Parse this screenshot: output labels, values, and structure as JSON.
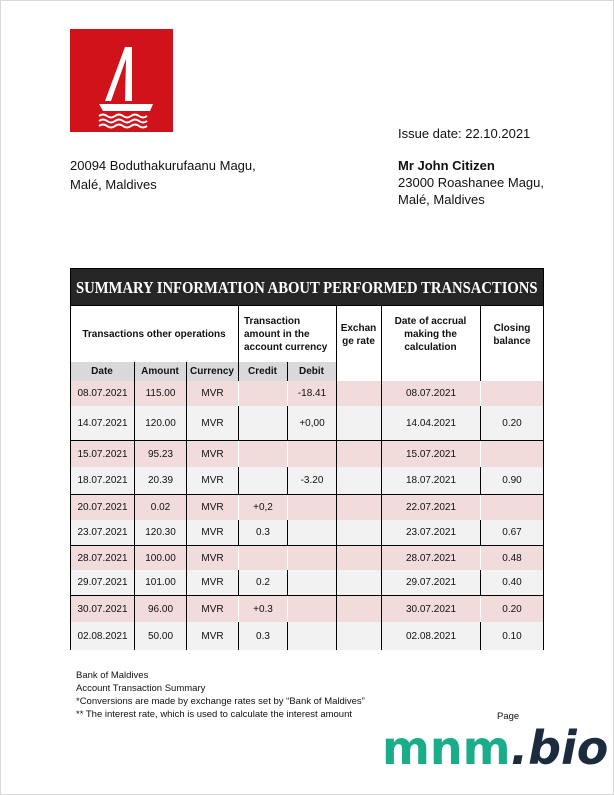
{
  "logo": {
    "icon": "sailboat-icon",
    "color": "#d0121b"
  },
  "issue_date": "Issue date: 22.10.2021",
  "sender": {
    "line1": "20094 Boduthakurufaanu Magu,",
    "line2": "Malé, Maldives"
  },
  "recipient": {
    "name": "Mr John Citizen",
    "line1": "23000 Roashanee Magu,",
    "line2": "Malé, Maldives"
  },
  "table": {
    "title": "SUMMARY INFORMATION ABOUT PERFORMED TRANSACTIONS",
    "group_headers": {
      "other": "Transactions other operations",
      "account": "Transaction amount in the account currency",
      "rate": "Exchan ge rate",
      "accrual": "Date of accrual making the calculation",
      "closing": "Closing balance"
    },
    "sub_headers": {
      "date": "Date",
      "amount": "Amount",
      "currency": "Currency",
      "credit": "Credit",
      "debit": "Debit"
    },
    "rows": [
      {
        "date": "08.07.2021",
        "amount": "115.00",
        "currency": "MVR",
        "credit": "",
        "debit": "-18.41",
        "rate": "",
        "accrual": "08.07.2021",
        "closing": ""
      },
      {
        "date": "14.07.2021",
        "amount": "120.00",
        "currency": "MVR",
        "credit": "",
        "debit": "+0,00",
        "rate": "",
        "accrual": "14.04.2021",
        "closing": "0.20"
      },
      {
        "date": "15.07.2021",
        "amount": "95.23",
        "currency": "MVR",
        "credit": "",
        "debit": "",
        "rate": "",
        "accrual": "15.07.2021",
        "closing": ""
      },
      {
        "date": "18.07.2021",
        "amount": "20.39",
        "currency": "MVR",
        "credit": "",
        "debit": "-3.20",
        "rate": "",
        "accrual": "18.07.2021",
        "closing": "0.90"
      },
      {
        "date": "20.07.2021",
        "amount": "0.02",
        "currency": "MVR",
        "credit": "+0,2",
        "debit": "",
        "rate": "",
        "accrual": "22.07.2021",
        "closing": ""
      },
      {
        "date": "23.07.2021",
        "amount": "120.30",
        "currency": "MVR",
        "credit": "0.3",
        "debit": "",
        "rate": "",
        "accrual": "23.07.2021",
        "closing": "0.67"
      },
      {
        "date": "28.07.2021",
        "amount": "100.00",
        "currency": "MVR",
        "credit": "",
        "debit": "",
        "rate": "",
        "accrual": "28.07.2021",
        "closing": "0.48"
      },
      {
        "date": "29.07.2021",
        "amount": "101.00",
        "currency": "MVR",
        "credit": "0.2",
        "debit": "",
        "rate": "",
        "accrual": "29.07.2021",
        "closing": "0.40"
      },
      {
        "date": "30.07.2021",
        "amount": "96.00",
        "currency": "MVR",
        "credit": "+0.3",
        "debit": "",
        "rate": "",
        "accrual": "30.07.2021",
        "closing": "0.20"
      },
      {
        "date": "02.08.2021",
        "amount": "50.00",
        "currency": "MVR",
        "credit": "0.3",
        "debit": "",
        "rate": "",
        "accrual": "02.08.2021",
        "closing": "0.10"
      }
    ],
    "colors": {
      "pink_row": "#f2dcdb",
      "gray_row": "#f2f2f2",
      "title_bg": "#262626"
    }
  },
  "footer": {
    "line1": "Bank of Maldives",
    "line2": "Account Transaction Summary",
    "line3": "*Conversions are made by exchange rates set by “Bank of Maldives”",
    "line4": "** The interest rate, which is used to calculate the interest amount",
    "page": "Page"
  },
  "watermark": {
    "part1": "mnm",
    "part2": ".bio"
  }
}
